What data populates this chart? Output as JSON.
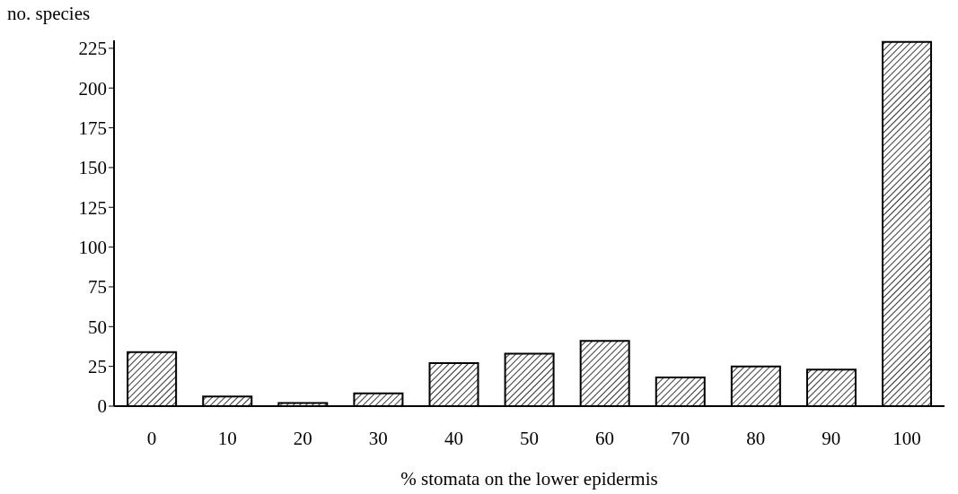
{
  "chart_data": {
    "type": "bar",
    "ylabel": "no. species",
    "xlabel": "%  stomata on the lower epidermis",
    "categories": [
      "0",
      "10",
      "20",
      "30",
      "40",
      "50",
      "60",
      "70",
      "80",
      "90",
      "100"
    ],
    "values": [
      34,
      6,
      2,
      8,
      27,
      33,
      41,
      18,
      25,
      23,
      229
    ],
    "color": "#000000",
    "ylim": [
      0,
      230
    ],
    "yticks": [
      0,
      25,
      50,
      75,
      100,
      125,
      150,
      175,
      200,
      225
    ],
    "grid": false,
    "legend": false
  }
}
